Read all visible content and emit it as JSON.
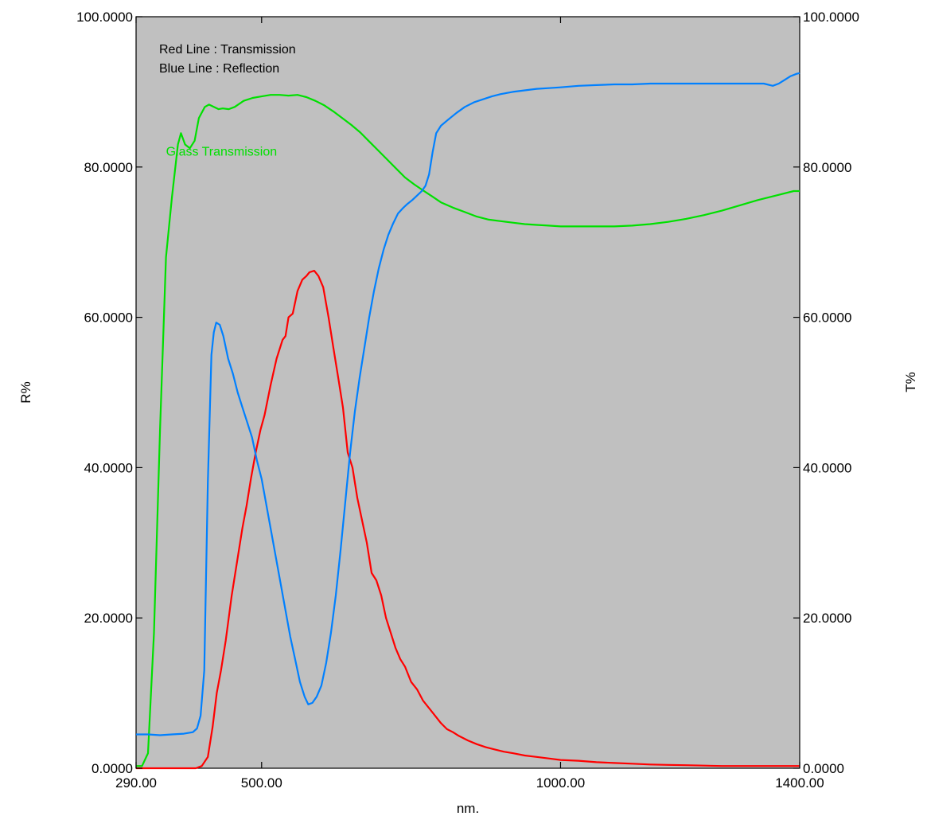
{
  "chart_data": {
    "type": "line",
    "title": "",
    "xlabel": "nm.",
    "ylabel_left": "R%",
    "ylabel_right": "T%",
    "xlim": [
      290,
      1400
    ],
    "ylim": [
      0,
      100
    ],
    "grid": false,
    "plot_background": "#c0c0c0",
    "x_ticks": [
      {
        "value": 290,
        "label": "290.00"
      },
      {
        "value": 500,
        "label": "500.00"
      },
      {
        "value": 1000,
        "label": "1000.00"
      },
      {
        "value": 1400,
        "label": "1400.00"
      }
    ],
    "y_ticks_left": [
      {
        "value": 0,
        "label": "0.0000"
      },
      {
        "value": 20,
        "label": "20.0000"
      },
      {
        "value": 40,
        "label": "40.0000"
      },
      {
        "value": 60,
        "label": "60.0000"
      },
      {
        "value": 80,
        "label": "80.0000"
      },
      {
        "value": 100,
        "label": "100.0000"
      }
    ],
    "y_ticks_right": [
      {
        "value": 0,
        "label": "0.0000"
      },
      {
        "value": 20,
        "label": "20.0000"
      },
      {
        "value": 40,
        "label": "40.0000"
      },
      {
        "value": 60,
        "label": "60.0000"
      },
      {
        "value": 80,
        "label": "80.0000"
      },
      {
        "value": 100,
        "label": "100.0000"
      }
    ],
    "legend": {
      "placement": "top-left",
      "lines": [
        "Red Line : Transmission",
        "Blue Line : Reflection"
      ]
    },
    "annotations": [
      {
        "text": "Glass Transmission",
        "x": 340,
        "y": 81.5,
        "color": "#00e000"
      }
    ],
    "series": [
      {
        "key": "glass",
        "color": "#00e000",
        "points": [
          [
            290,
            0.3
          ],
          [
            300,
            0.3
          ],
          [
            310,
            2
          ],
          [
            320,
            18
          ],
          [
            330,
            45
          ],
          [
            340,
            68
          ],
          [
            350,
            76
          ],
          [
            360,
            83
          ],
          [
            365,
            84.5
          ],
          [
            372,
            83
          ],
          [
            380,
            82.5
          ],
          [
            388,
            83.5
          ],
          [
            395,
            86.5
          ],
          [
            405,
            88
          ],
          [
            412,
            88.3
          ],
          [
            420,
            88
          ],
          [
            428,
            87.7
          ],
          [
            435,
            87.8
          ],
          [
            445,
            87.7
          ],
          [
            455,
            88
          ],
          [
            470,
            88.8
          ],
          [
            485,
            89.2
          ],
          [
            500,
            89.4
          ],
          [
            515,
            89.6
          ],
          [
            530,
            89.6
          ],
          [
            545,
            89.5
          ],
          [
            560,
            89.6
          ],
          [
            575,
            89.3
          ],
          [
            590,
            88.8
          ],
          [
            605,
            88.2
          ],
          [
            620,
            87.4
          ],
          [
            635,
            86.5
          ],
          [
            650,
            85.6
          ],
          [
            665,
            84.6
          ],
          [
            680,
            83.4
          ],
          [
            695,
            82.2
          ],
          [
            710,
            81
          ],
          [
            725,
            79.8
          ],
          [
            740,
            78.6
          ],
          [
            755,
            77.7
          ],
          [
            770,
            76.9
          ],
          [
            785,
            76.1
          ],
          [
            800,
            75.3
          ],
          [
            820,
            74.6
          ],
          [
            840,
            74
          ],
          [
            860,
            73.4
          ],
          [
            880,
            73
          ],
          [
            900,
            72.8
          ],
          [
            920,
            72.6
          ],
          [
            940,
            72.4
          ],
          [
            960,
            72.3
          ],
          [
            980,
            72.2
          ],
          [
            1000,
            72.1
          ],
          [
            1030,
            72.1
          ],
          [
            1060,
            72.1
          ],
          [
            1090,
            72.1
          ],
          [
            1120,
            72.2
          ],
          [
            1150,
            72.4
          ],
          [
            1180,
            72.7
          ],
          [
            1210,
            73.1
          ],
          [
            1240,
            73.6
          ],
          [
            1270,
            74.2
          ],
          [
            1300,
            74.9
          ],
          [
            1330,
            75.6
          ],
          [
            1360,
            76.2
          ],
          [
            1390,
            76.8
          ],
          [
            1400,
            76.8
          ]
        ]
      },
      {
        "key": "transmission",
        "color": "#ff0000",
        "points": [
          [
            290,
            0
          ],
          [
            300,
            0
          ],
          [
            320,
            0
          ],
          [
            340,
            0
          ],
          [
            360,
            0
          ],
          [
            390,
            0
          ],
          [
            400,
            0.3
          ],
          [
            410,
            1.5
          ],
          [
            418,
            5.5
          ],
          [
            425,
            10
          ],
          [
            432,
            13
          ],
          [
            440,
            17
          ],
          [
            450,
            23
          ],
          [
            460,
            28
          ],
          [
            468,
            32
          ],
          [
            475,
            35
          ],
          [
            482,
            38.5
          ],
          [
            490,
            42
          ],
          [
            498,
            45
          ],
          [
            505,
            47
          ],
          [
            515,
            51
          ],
          [
            525,
            54.5
          ],
          [
            535,
            57
          ],
          [
            540,
            57.5
          ],
          [
            545,
            60
          ],
          [
            552,
            60.5
          ],
          [
            560,
            63.5
          ],
          [
            568,
            65
          ],
          [
            575,
            65.5
          ],
          [
            580,
            66
          ],
          [
            588,
            66.2
          ],
          [
            595,
            65.5
          ],
          [
            603,
            64
          ],
          [
            612,
            60
          ],
          [
            620,
            56
          ],
          [
            628,
            52
          ],
          [
            636,
            48
          ],
          [
            644,
            42
          ],
          [
            652,
            40
          ],
          [
            660,
            36
          ],
          [
            668,
            33
          ],
          [
            676,
            30
          ],
          [
            684,
            26
          ],
          [
            692,
            25
          ],
          [
            700,
            23
          ],
          [
            708,
            20
          ],
          [
            716,
            18
          ],
          [
            724,
            16
          ],
          [
            732,
            14.5
          ],
          [
            740,
            13.5
          ],
          [
            750,
            11.5
          ],
          [
            760,
            10.5
          ],
          [
            770,
            9
          ],
          [
            780,
            8
          ],
          [
            790,
            7
          ],
          [
            800,
            6
          ],
          [
            810,
            5.2
          ],
          [
            820,
            4.8
          ],
          [
            830,
            4.3
          ],
          [
            845,
            3.7
          ],
          [
            860,
            3.2
          ],
          [
            875,
            2.8
          ],
          [
            890,
            2.5
          ],
          [
            905,
            2.2
          ],
          [
            920,
            2
          ],
          [
            940,
            1.7
          ],
          [
            960,
            1.5
          ],
          [
            980,
            1.3
          ],
          [
            1000,
            1.1
          ],
          [
            1030,
            1
          ],
          [
            1060,
            0.8
          ],
          [
            1090,
            0.7
          ],
          [
            1120,
            0.6
          ],
          [
            1150,
            0.5
          ],
          [
            1180,
            0.45
          ],
          [
            1210,
            0.4
          ],
          [
            1240,
            0.35
          ],
          [
            1270,
            0.3
          ],
          [
            1300,
            0.3
          ],
          [
            1330,
            0.3
          ],
          [
            1360,
            0.3
          ],
          [
            1400,
            0.3
          ]
        ]
      },
      {
        "key": "reflection",
        "color": "#0080ff",
        "points": [
          [
            290,
            4.5
          ],
          [
            310,
            4.5
          ],
          [
            330,
            4.4
          ],
          [
            350,
            4.5
          ],
          [
            370,
            4.6
          ],
          [
            385,
            4.8
          ],
          [
            392,
            5.3
          ],
          [
            398,
            7
          ],
          [
            404,
            13
          ],
          [
            410,
            38
          ],
          [
            416,
            55
          ],
          [
            420,
            58
          ],
          [
            424,
            59.3
          ],
          [
            430,
            59
          ],
          [
            436,
            57.5
          ],
          [
            444,
            54.5
          ],
          [
            452,
            52.5
          ],
          [
            460,
            50
          ],
          [
            468,
            48
          ],
          [
            476,
            46
          ],
          [
            484,
            44
          ],
          [
            492,
            41
          ],
          [
            500,
            38.5
          ],
          [
            508,
            35
          ],
          [
            516,
            31.5
          ],
          [
            524,
            28
          ],
          [
            532,
            24.5
          ],
          [
            540,
            21
          ],
          [
            548,
            17.5
          ],
          [
            556,
            14.5
          ],
          [
            564,
            11.5
          ],
          [
            572,
            9.5
          ],
          [
            578,
            8.5
          ],
          [
            585,
            8.7
          ],
          [
            592,
            9.5
          ],
          [
            600,
            11
          ],
          [
            608,
            14
          ],
          [
            616,
            18
          ],
          [
            624,
            23
          ],
          [
            632,
            29
          ],
          [
            640,
            35.5
          ],
          [
            648,
            42
          ],
          [
            656,
            47.5
          ],
          [
            664,
            52
          ],
          [
            672,
            56
          ],
          [
            680,
            60
          ],
          [
            688,
            63.5
          ],
          [
            696,
            66.5
          ],
          [
            704,
            69
          ],
          [
            712,
            71
          ],
          [
            720,
            72.5
          ],
          [
            728,
            73.8
          ],
          [
            736,
            74.5
          ],
          [
            744,
            75.1
          ],
          [
            752,
            75.6
          ],
          [
            760,
            76.2
          ],
          [
            768,
            76.8
          ],
          [
            774,
            77.5
          ],
          [
            780,
            79
          ],
          [
            786,
            82
          ],
          [
            792,
            84.5
          ],
          [
            800,
            85.5
          ],
          [
            812,
            86.3
          ],
          [
            826,
            87.2
          ],
          [
            840,
            88
          ],
          [
            855,
            88.6
          ],
          [
            870,
            89
          ],
          [
            885,
            89.4
          ],
          [
            900,
            89.7
          ],
          [
            920,
            90
          ],
          [
            940,
            90.2
          ],
          [
            960,
            90.4
          ],
          [
            980,
            90.5
          ],
          [
            1000,
            90.6
          ],
          [
            1030,
            90.8
          ],
          [
            1060,
            90.9
          ],
          [
            1090,
            91
          ],
          [
            1120,
            91
          ],
          [
            1150,
            91.1
          ],
          [
            1180,
            91.1
          ],
          [
            1210,
            91.1
          ],
          [
            1240,
            91.1
          ],
          [
            1270,
            91.1
          ],
          [
            1300,
            91.1
          ],
          [
            1320,
            91.1
          ],
          [
            1340,
            91.1
          ],
          [
            1355,
            90.8
          ],
          [
            1365,
            91.1
          ],
          [
            1375,
            91.6
          ],
          [
            1385,
            92.1
          ],
          [
            1395,
            92.4
          ],
          [
            1400,
            92.5
          ]
        ]
      }
    ]
  }
}
